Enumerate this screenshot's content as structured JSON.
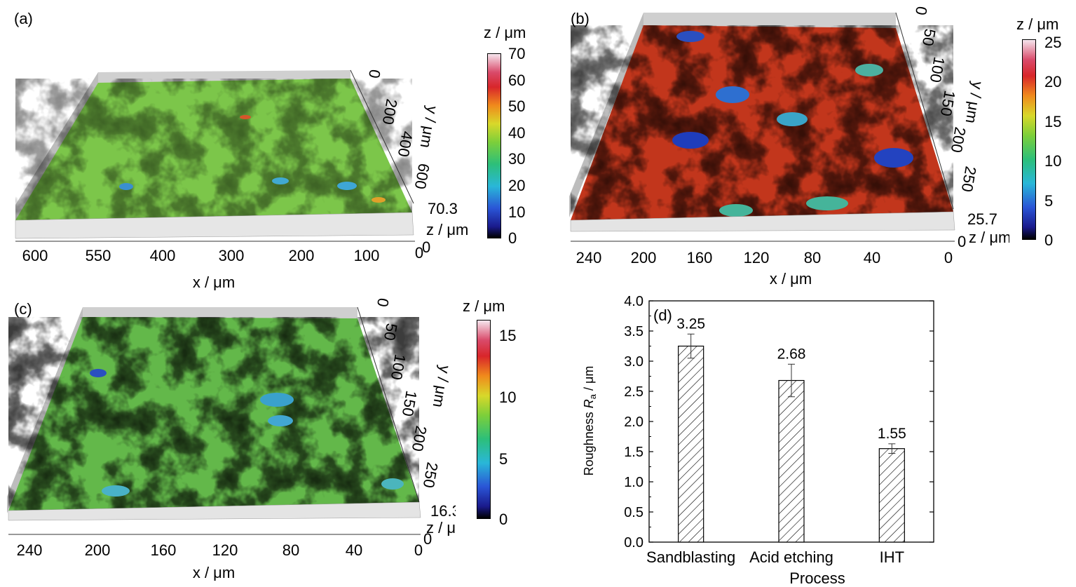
{
  "panels": {
    "a": {
      "label": "(a)",
      "colorbar": {
        "title": "z / μm",
        "ticks": [
          "70",
          "60",
          "50",
          "40",
          "30",
          "20",
          "10",
          "0"
        ]
      },
      "x_ticks": [
        "600",
        "550",
        "400",
        "300",
        "200",
        "100",
        "0"
      ],
      "x_label": "x / μm",
      "y_ticks": [
        "0",
        "200",
        "400",
        "600"
      ],
      "y_label": "y / μm",
      "z_top": "70.3",
      "z_label": "z / μm",
      "z_zero": "0"
    },
    "b": {
      "label": "(b)",
      "colorbar": {
        "title": "z / μm",
        "ticks": [
          "25",
          "20",
          "15",
          "10",
          "5",
          "0"
        ]
      },
      "x_ticks": [
        "240",
        "200",
        "160",
        "120",
        "80",
        "40",
        "0"
      ],
      "x_label": "x / μm",
      "y_ticks": [
        "0",
        "50",
        "100",
        "150",
        "200",
        "250"
      ],
      "y_label": "y / μm",
      "z_top": "25.7",
      "z_label": "z / μm",
      "z_zero": "0"
    },
    "c": {
      "label": "(c)",
      "colorbar": {
        "title": "z / μm",
        "ticks": [
          "15",
          "10",
          "5",
          "0"
        ]
      },
      "x_ticks": [
        "240",
        "200",
        "160",
        "120",
        "80",
        "40",
        "0"
      ],
      "x_label": "x / μm",
      "y_ticks": [
        "0",
        "50",
        "100",
        "150",
        "200",
        "250"
      ],
      "y_label": "y / μm",
      "z_top": "16.3",
      "z_label": "z / μm",
      "z_zero": "0"
    },
    "d": {
      "label": "(d)"
    }
  },
  "chart_data": {
    "type": "bar",
    "categories": [
      "Sandblasting",
      "Acid etching",
      "IHT"
    ],
    "values": [
      3.25,
      2.68,
      1.55
    ],
    "errors": [
      0.2,
      0.27,
      0.08
    ],
    "value_labels": [
      "3.25",
      "2.68",
      "1.55"
    ],
    "xlabel": "Process",
    "ylabel_main": "Roughness ",
    "ylabel_symbol": "R",
    "ylabel_sub": "a",
    "ylabel_unit": " / μm",
    "ylim": [
      0,
      4.0
    ],
    "yticks": [
      "0.0",
      "0.5",
      "1.0",
      "1.5",
      "2.0",
      "2.5",
      "3.0",
      "3.5",
      "4.0"
    ],
    "bar_fill": "hatched"
  },
  "colors": {
    "surface_green": "#63c04a",
    "surface_red": "#c1301c",
    "surface_blue": "#2f5fc8"
  }
}
